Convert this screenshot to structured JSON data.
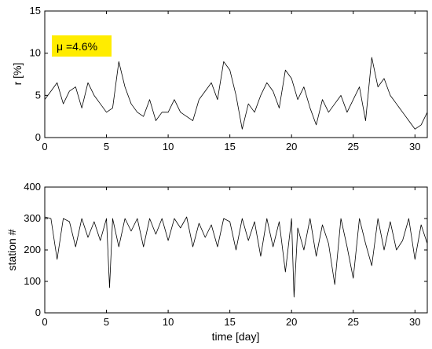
{
  "chart_data": [
    {
      "type": "line",
      "title": "",
      "xlabel": "",
      "ylabel": "r [%]",
      "xlim": [
        0,
        31
      ],
      "ylim": [
        0,
        15
      ],
      "xticks": [
        0,
        5,
        10,
        15,
        20,
        25,
        30
      ],
      "yticks": [
        0,
        5,
        10,
        15
      ],
      "grid": false,
      "annotation": {
        "text": "μ =4.6%",
        "background": "#ffec00",
        "position": "top-left"
      },
      "line_color": "#000000",
      "series": [
        {
          "x": [
            0,
            0.5,
            1,
            1.5,
            2,
            2.5,
            3,
            3.5,
            4,
            4.5,
            5,
            5.5,
            6,
            6.5,
            7,
            7.5,
            8,
            8.5,
            9,
            9.5,
            10,
            10.5,
            11,
            11.5,
            12,
            12.5,
            13,
            13.5,
            14,
            14.5,
            15,
            15.5,
            16,
            16.5,
            17,
            17.5,
            18,
            18.5,
            19,
            19.5,
            20,
            20.5,
            21,
            21.5,
            22,
            22.5,
            23,
            23.5,
            24,
            24.5,
            25,
            25.5,
            26,
            26.5,
            27,
            27.5,
            28,
            28.5,
            29,
            29.5,
            30,
            30.5,
            31
          ],
          "values": [
            4.5,
            5.5,
            6.5,
            4.0,
            5.5,
            6.0,
            3.5,
            6.5,
            5.0,
            4.0,
            3.0,
            3.5,
            9.0,
            6.0,
            4.0,
            3.0,
            2.5,
            4.5,
            2.0,
            3.0,
            3.0,
            4.5,
            3.0,
            2.5,
            2.0,
            4.5,
            5.5,
            6.5,
            4.5,
            9.0,
            8.0,
            5.0,
            1.0,
            4.0,
            3.0,
            5.0,
            6.5,
            5.5,
            3.5,
            8.0,
            7.0,
            4.5,
            6.0,
            3.5,
            1.5,
            4.5,
            3.0,
            4.0,
            5.0,
            3.0,
            4.5,
            6.0,
            2.0,
            9.5,
            6.0,
            7.0,
            5.0,
            4.0,
            3.0,
            2.0,
            1.0,
            1.5,
            3.0
          ]
        }
      ]
    },
    {
      "type": "line",
      "title": "",
      "xlabel": "time [day]",
      "ylabel": "station #",
      "xlim": [
        0,
        31
      ],
      "ylim": [
        0,
        400
      ],
      "xticks": [
        0,
        5,
        10,
        15,
        20,
        25,
        30
      ],
      "yticks": [
        0,
        100,
        200,
        300,
        400
      ],
      "grid": false,
      "line_color": "#000000",
      "series": [
        {
          "x": [
            0,
            0.5,
            1,
            1.5,
            2,
            2.5,
            3,
            3.5,
            4,
            4.5,
            5,
            5.25,
            5.5,
            6,
            6.5,
            7,
            7.5,
            8,
            8.5,
            9,
            9.5,
            10,
            10.5,
            11,
            11.5,
            12,
            12.5,
            13,
            13.5,
            14,
            14.5,
            15,
            15.5,
            16,
            16.5,
            17,
            17.5,
            18,
            18.5,
            19,
            19.5,
            20,
            20.2,
            20.5,
            21,
            21.5,
            22,
            22.5,
            23,
            23.5,
            24,
            24.5,
            25,
            25.5,
            26,
            26.5,
            27,
            27.5,
            28,
            28.5,
            29,
            29.5,
            30,
            30.5,
            31
          ],
          "values": [
            305,
            300,
            170,
            300,
            290,
            210,
            300,
            240,
            290,
            230,
            300,
            80,
            300,
            210,
            300,
            260,
            300,
            210,
            300,
            250,
            300,
            230,
            300,
            270,
            305,
            210,
            285,
            240,
            280,
            210,
            300,
            290,
            200,
            300,
            230,
            290,
            180,
            300,
            210,
            290,
            130,
            300,
            50,
            270,
            200,
            300,
            180,
            280,
            220,
            90,
            300,
            210,
            110,
            300,
            220,
            150,
            300,
            200,
            290,
            200,
            230,
            300,
            170,
            280,
            220
          ]
        }
      ]
    }
  ]
}
